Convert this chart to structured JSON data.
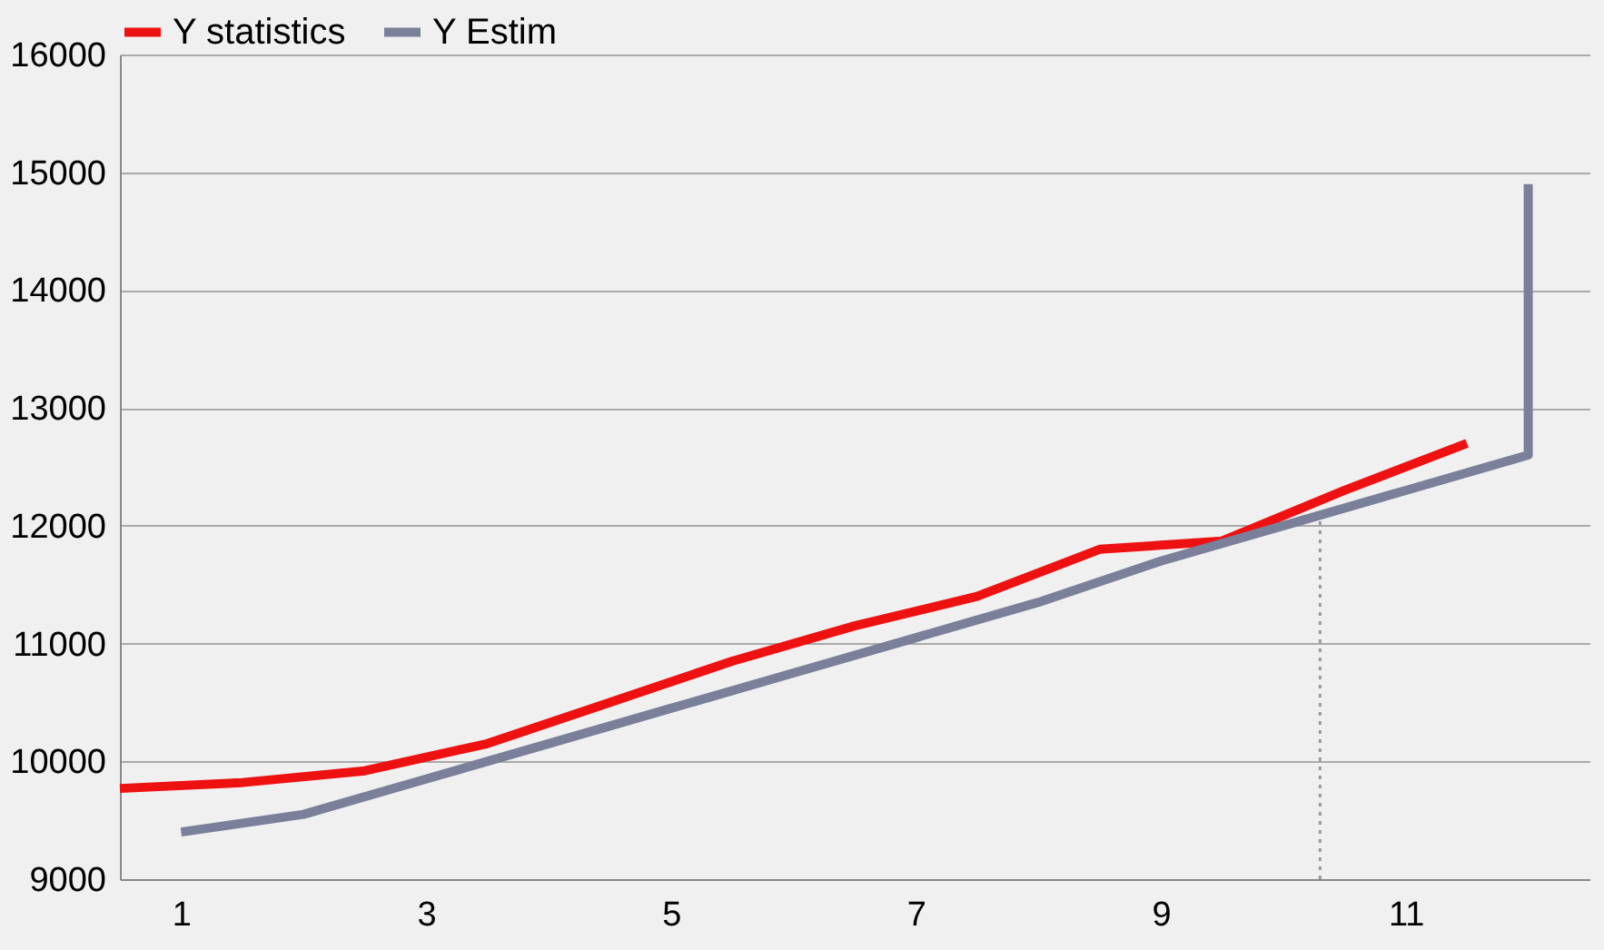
{
  "chart_data": {
    "type": "line",
    "series": [
      {
        "name": "Y statistics",
        "color": "#ee1111",
        "x": [
          0.5,
          1.5,
          2.5,
          3.5,
          4.5,
          5.5,
          6.5,
          7.5,
          8.5,
          9.5,
          10.5,
          11.5
        ],
        "values": [
          9770,
          9820,
          9920,
          10150,
          10500,
          10850,
          11150,
          11400,
          11800,
          11870,
          12300,
          12700
        ]
      },
      {
        "name": "Y Estim",
        "color": "#7a7f9a",
        "x": [
          1,
          2,
          3,
          4,
          5,
          6,
          7,
          8,
          9,
          10,
          11,
          12,
          12
        ],
        "values": [
          9400,
          9550,
          9850,
          10150,
          10450,
          10750,
          11050,
          11350,
          11700,
          12000,
          12300,
          12600,
          14900
        ]
      }
    ],
    "xlim": [
      0.5,
      12.5
    ],
    "xticks": [
      1,
      3,
      5,
      7,
      9,
      11
    ],
    "ylim": [
      9000,
      16000
    ],
    "yticks": [
      9000,
      10000,
      11000,
      12000,
      13000,
      14000,
      15000,
      16000
    ],
    "ref_lines": [
      {
        "axis": "x",
        "value": 10.3,
        "color": "#999999",
        "line_style": "dotted"
      }
    ],
    "grid": "y",
    "legend": "top",
    "marker": "none",
    "line_style": "solid"
  }
}
